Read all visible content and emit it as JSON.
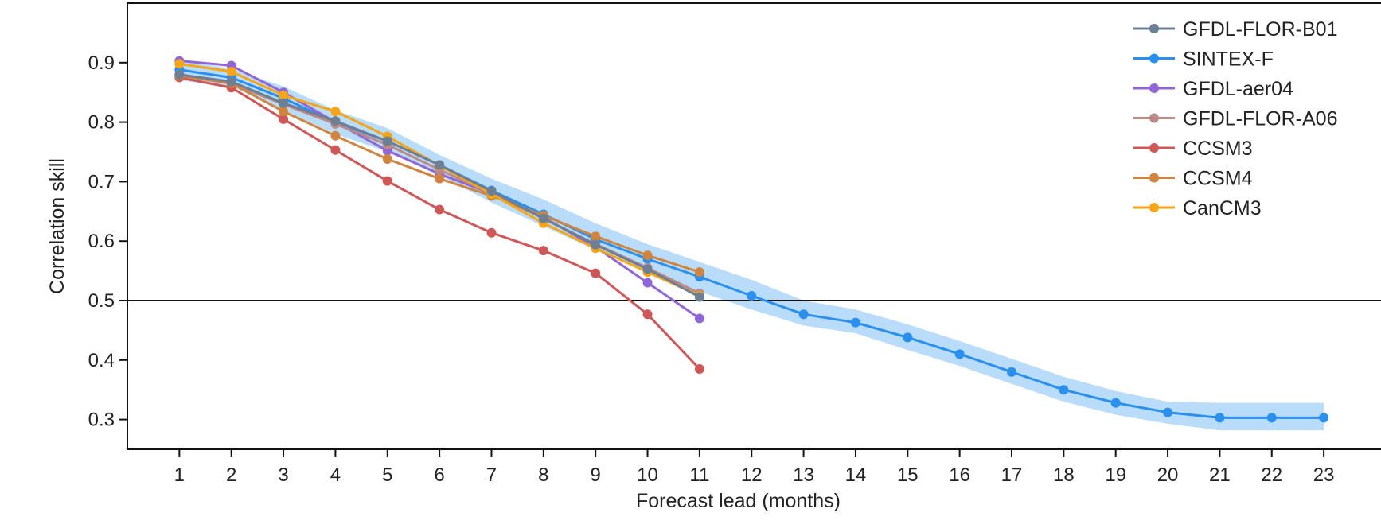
{
  "chart_data": {
    "type": "line",
    "xlabel": "Forecast lead (months)",
    "ylabel": "Correlation skill",
    "xlim": [
      0,
      24.1
    ],
    "ylim": [
      0.25,
      1.0
    ],
    "x_ticks": [
      "1",
      "2",
      "3",
      "4",
      "5",
      "6",
      "7",
      "8",
      "9",
      "10",
      "11",
      "12",
      "13",
      "14",
      "15",
      "16",
      "17",
      "18",
      "19",
      "20",
      "21",
      "22",
      "23"
    ],
    "y_ticks": [
      "0.3",
      "0.4",
      "0.5",
      "0.6",
      "0.7",
      "0.8",
      "0.9"
    ],
    "y_tick_values": [
      0.3,
      0.4,
      0.5,
      0.6,
      0.7,
      0.8,
      0.9
    ],
    "reference_line": 0.5,
    "legend_position": "top-right",
    "band": {
      "series": "SINTEX-F",
      "x": [
        1,
        2,
        3,
        4,
        5,
        6,
        7,
        8,
        9,
        10,
        11,
        12,
        13,
        14,
        15,
        16,
        17,
        18,
        19,
        20,
        21,
        22,
        23
      ],
      "lower": [
        0.87,
        0.86,
        0.82,
        0.78,
        0.75,
        0.71,
        0.665,
        0.625,
        0.585,
        0.55,
        0.515,
        0.485,
        0.458,
        0.445,
        0.417,
        0.39,
        0.36,
        0.33,
        0.308,
        0.293,
        0.282,
        0.282,
        0.282
      ],
      "upper": [
        0.905,
        0.89,
        0.86,
        0.82,
        0.79,
        0.745,
        0.705,
        0.67,
        0.63,
        0.595,
        0.565,
        0.535,
        0.5,
        0.485,
        0.46,
        0.432,
        0.402,
        0.372,
        0.348,
        0.33,
        0.328,
        0.328,
        0.328
      ]
    },
    "series": [
      {
        "name": "SINTEX-F",
        "color": "#2b8fed",
        "x": [
          1,
          2,
          3,
          4,
          5,
          6,
          7,
          8,
          9,
          10,
          11,
          12,
          13,
          14,
          15,
          16,
          17,
          18,
          19,
          20,
          21,
          22,
          23
        ],
        "values": [
          0.888,
          0.875,
          0.84,
          0.8,
          0.768,
          0.728,
          0.685,
          0.645,
          0.603,
          0.57,
          0.54,
          0.508,
          0.477,
          0.463,
          0.438,
          0.41,
          0.38,
          0.35,
          0.328,
          0.312,
          0.303,
          0.303,
          0.303
        ]
      },
      {
        "name": "GFDL-aer04",
        "color": "#9167d8",
        "x": [
          1,
          2,
          3,
          4,
          5,
          6,
          7,
          8,
          9,
          10,
          11
        ],
        "values": [
          0.903,
          0.895,
          0.85,
          0.8,
          0.752,
          0.713,
          0.68,
          0.64,
          0.59,
          0.53,
          0.47
        ]
      },
      {
        "name": "GFDL-FLOR-A06",
        "color": "#bc8a86",
        "x": [
          1,
          2,
          3,
          4,
          5,
          6,
          7,
          8,
          9,
          10,
          11
        ],
        "values": [
          0.88,
          0.865,
          0.83,
          0.797,
          0.762,
          0.72,
          0.68,
          0.638,
          0.595,
          0.555,
          0.512
        ]
      },
      {
        "name": "CCSM3",
        "color": "#d05758",
        "x": [
          1,
          2,
          3,
          4,
          5,
          6,
          7,
          8,
          9,
          10,
          11
        ],
        "values": [
          0.875,
          0.858,
          0.805,
          0.753,
          0.701,
          0.653,
          0.614,
          0.584,
          0.546,
          0.477,
          0.385
        ]
      },
      {
        "name": "CCSM4",
        "color": "#cf8540",
        "x": [
          1,
          2,
          3,
          4,
          5,
          6,
          7,
          8,
          9,
          10,
          11
        ],
        "values": [
          0.878,
          0.865,
          0.818,
          0.777,
          0.738,
          0.705,
          0.676,
          0.643,
          0.608,
          0.576,
          0.548
        ]
      },
      {
        "name": "CanCM3",
        "color": "#f5a518",
        "x": [
          1,
          2,
          3,
          4,
          5,
          6,
          7,
          8,
          9,
          10,
          11
        ],
        "values": [
          0.898,
          0.885,
          0.845,
          0.818,
          0.776,
          0.727,
          0.679,
          0.63,
          0.588,
          0.548,
          0.508
        ]
      },
      {
        "name": "GFDL-FLOR-B01",
        "color": "#6d7f94",
        "x": [
          1,
          2,
          3,
          4,
          5,
          6,
          7,
          8,
          9,
          10,
          11
        ],
        "values": [
          0.88,
          0.868,
          0.832,
          0.802,
          0.768,
          0.728,
          0.684,
          0.638,
          0.594,
          0.553,
          0.506
        ]
      }
    ],
    "legend": [
      {
        "name": "GFDL-FLOR-B01",
        "color": "#6d7f94"
      },
      {
        "name": "SINTEX-F",
        "color": "#2b8fed"
      },
      {
        "name": "GFDL-aer04",
        "color": "#9167d8"
      },
      {
        "name": "GFDL-FLOR-A06",
        "color": "#bc8a86"
      },
      {
        "name": "CCSM3",
        "color": "#d05758"
      },
      {
        "name": "CCSM4",
        "color": "#cf8540"
      },
      {
        "name": "CanCM3",
        "color": "#f5a518"
      }
    ],
    "band_color": "#b8dcfa"
  }
}
